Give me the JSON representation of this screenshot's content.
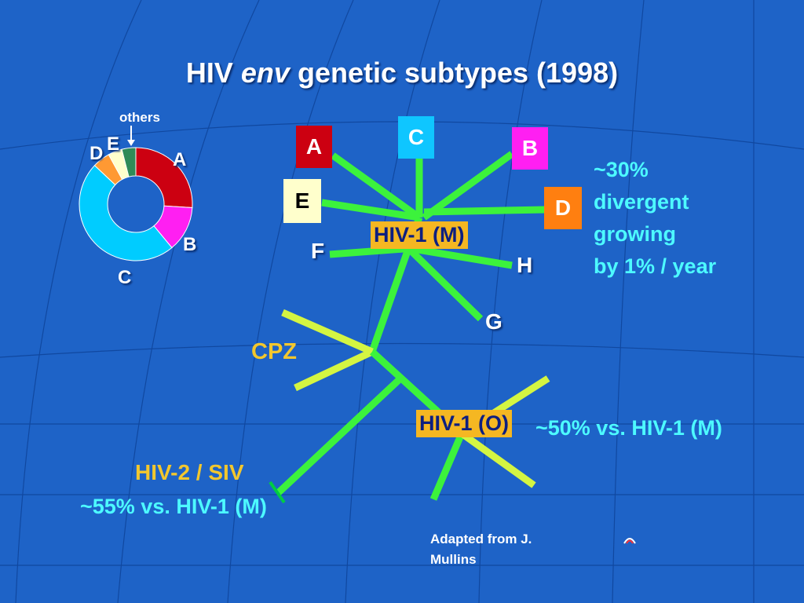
{
  "title": {
    "prefix": "HIV ",
    "italic": "env",
    "suffix": " genetic subtypes (1998)"
  },
  "colors": {
    "background": "#1e63c7",
    "branch": "#3cf23c",
    "branch_tip": "#d4f542",
    "label_cyan": "#4dfaff",
    "label_gold": "#f2c72e",
    "subtype_box": "#f5b722"
  },
  "pie": {
    "others_label": "others",
    "slices": [
      {
        "label": "A",
        "value": 26,
        "color": "#cc0011"
      },
      {
        "label": "B",
        "value": 13,
        "color": "#ff1ff2"
      },
      {
        "label": "C",
        "value": 48,
        "color": "#00ccff"
      },
      {
        "label": "D",
        "value": 5,
        "color": "#ff9933"
      },
      {
        "label": "E",
        "value": 4,
        "color": "#ffffcc"
      },
      {
        "label": "others",
        "value": 4,
        "color": "#2e8b57"
      }
    ]
  },
  "tree": {
    "subtypes": [
      {
        "label": "A",
        "bg": "#cc0011",
        "fg": "#ffffff"
      },
      {
        "label": "C",
        "bg": "#0fc6ff",
        "fg": "#ffffff"
      },
      {
        "label": "B",
        "bg": "#ff1ff2",
        "fg": "#ffffff"
      },
      {
        "label": "E",
        "bg": "#ffffcc",
        "fg": "#000000"
      },
      {
        "label": "D",
        "bg": "#ff7f10",
        "fg": "#ffffff"
      }
    ],
    "plain_labels": {
      "F": "F",
      "H": "H",
      "G": "G"
    },
    "group_m": "HIV-1 (M)",
    "group_o": "HIV-1 (O)",
    "cpz": "CPZ",
    "hiv2_line1": "HIV-2 / SIV",
    "hiv2_line2": "~55% vs. HIV-1 (M)",
    "o_note": "~50% vs. HIV-1 (M)"
  },
  "desc_lines": [
    "~30%",
    "divergent",
    "growing",
    "by 1% / year"
  ],
  "credit": "Adapted from J. Mullins",
  "nav_icon": "home-arrow-icon"
}
